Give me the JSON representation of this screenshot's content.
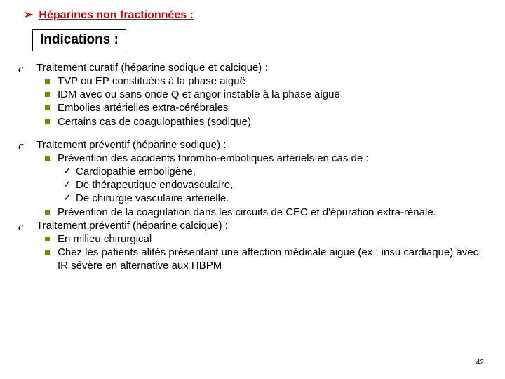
{
  "header": {
    "arrow": "➢",
    "title": "Héparines non fractionnées :"
  },
  "indications_label": "Indications :",
  "sections": [
    {
      "moon": "c",
      "lead": "Traitement curatif (héparine sodique et calcique) :",
      "subs": [
        "TVP ou EP constituées à la phase aiguë",
        "IDM avec ou sans onde Q et angor instable à la phase aiguë",
        "Embolies artérielles extra-cérébrales",
        "Certains cas de coagulopathies (sodique)"
      ]
    }
  ],
  "block2": {
    "moon1": "c",
    "lead1": "Traitement préventif (héparine sodique) :",
    "sub1": "Prévention des accidents thrombo-emboliques artériels en cas de :",
    "checks": [
      "Cardiopathie emboligène,",
      "De thérapeutique endovasculaire,",
      "De chirurgie vasculaire artérielle."
    ],
    "sub2": "Prévention de la coagulation dans les circuits de CEC et d'épuration extra-rénale.",
    "moon2": "c",
    "lead2": "Traitement préventif (héparine calcique) :",
    "sub3": "En milieu chirurgical",
    "sub4": "Chez les patients alités présentant une affection médicale aiguë (ex : insu cardiaque) avec IR sévère en alternative aux HBPM"
  },
  "page_number": "42",
  "colors": {
    "title": "#c00000",
    "bullet": "#808000",
    "text": "#000000",
    "bg": "#ffffff"
  }
}
